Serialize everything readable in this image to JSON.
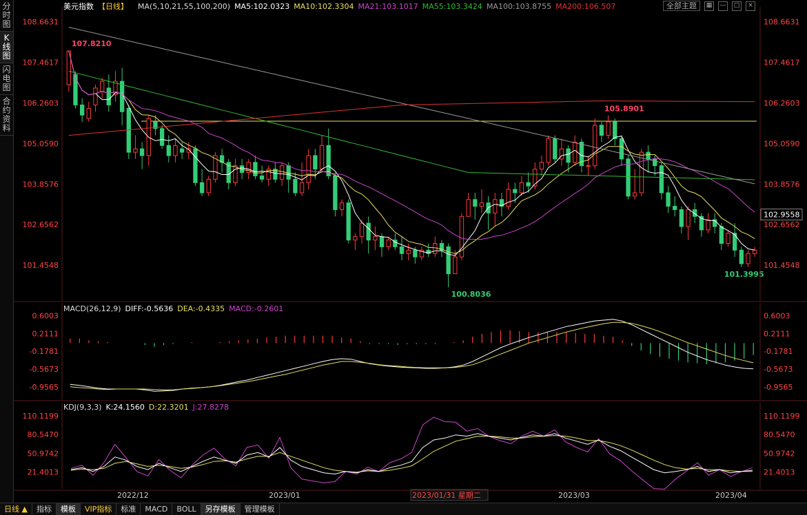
{
  "sidebar": [
    {
      "label": "分时图",
      "active": false
    },
    {
      "label": "K线图",
      "active": true
    },
    {
      "label": "闪电图",
      "active": false
    },
    {
      "label": "合约资料",
      "active": false
    }
  ],
  "header": {
    "title": "美元指数",
    "period": "【日线】",
    "ma_label": "MA(5,10,21,55,100,200)",
    "ma5": "MA5:102.0323",
    "ma10": "MA10:102.3304",
    "ma21": "MA21:103.1017",
    "ma55": "MA55:103.3424",
    "ma100": "MA100:103.8755",
    "ma200": "MA200:106.507",
    "cycle_button": "全部主题",
    "icons": [
      "grid-icon",
      "minus-icon",
      "window-icon",
      "close-icon"
    ]
  },
  "colors": {
    "up": "#ff3b3b",
    "down": "#33cc77",
    "ma5": "#ffffff",
    "ma10": "#e8e060",
    "ma21": "#cc44cc",
    "ma55": "#33bb33",
    "ma100": "#999999",
    "ma200": "#dd3333",
    "axis_text": "#ff4444",
    "grid": "#331111"
  },
  "chart_data": [
    {
      "type": "candlestick",
      "title": "美元指数 日线",
      "y_ticks": [
        "108.6631",
        "107.4617",
        "106.2603",
        "105.0590",
        "103.8576",
        "102.6562",
        "101.4548"
      ],
      "ylim": [
        100.5,
        108.9
      ],
      "current_price": "102.9558",
      "annotations": [
        {
          "label": "107.8210",
          "value": 107.821
        },
        {
          "label": "105.8901",
          "value": 105.8901
        },
        {
          "label": "100.8036",
          "value": 100.8036
        },
        {
          "label": "101.3995",
          "value": 101.3995
        }
      ],
      "horizontal_line": 105.72,
      "x_labels": [
        "2022/12",
        "2023/01",
        "2023/01/31 星期二",
        "2023/03",
        "2023/04"
      ],
      "candles": [
        [
          106.8,
          107.8,
          107.8,
          106.6
        ],
        [
          107.1,
          106.2,
          107.2,
          106.1
        ],
        [
          106.2,
          105.9,
          106.4,
          105.7
        ],
        [
          105.8,
          106.1,
          106.3,
          105.7
        ],
        [
          106.2,
          106.7,
          106.8,
          106.0
        ],
        [
          106.6,
          106.9,
          107.0,
          106.4
        ],
        [
          106.7,
          106.2,
          107.1,
          106.0
        ],
        [
          106.5,
          106.9,
          107.2,
          106.3
        ],
        [
          106.9,
          106.0,
          107.3,
          105.6
        ],
        [
          106.1,
          104.8,
          106.2,
          104.6
        ],
        [
          104.8,
          104.9,
          105.3,
          104.6
        ],
        [
          104.9,
          104.7,
          105.1,
          104.3
        ],
        [
          104.7,
          105.8,
          105.9,
          104.4
        ],
        [
          105.7,
          105.5,
          105.9,
          105.3
        ],
        [
          105.5,
          105.0,
          105.6,
          104.9
        ],
        [
          105.0,
          104.7,
          105.3,
          104.5
        ],
        [
          104.7,
          105.0,
          105.2,
          104.5
        ],
        [
          104.9,
          104.8,
          105.1,
          104.6
        ],
        [
          104.8,
          104.9,
          105.1,
          104.6
        ],
        [
          104.9,
          103.9,
          105.0,
          103.8
        ],
        [
          103.9,
          103.6,
          104.3,
          103.5
        ],
        [
          103.6,
          104.0,
          104.1,
          103.5
        ],
        [
          104.0,
          104.7,
          104.8,
          103.9
        ],
        [
          104.7,
          104.5,
          104.9,
          104.2
        ],
        [
          104.5,
          103.9,
          104.6,
          103.7
        ],
        [
          103.9,
          104.4,
          104.6,
          103.8
        ],
        [
          104.4,
          104.2,
          104.6,
          104.0
        ],
        [
          104.2,
          104.5,
          104.6,
          104.0
        ],
        [
          104.5,
          104.1,
          104.7,
          104.0
        ],
        [
          104.1,
          104.0,
          104.4,
          103.9
        ],
        [
          104.0,
          104.3,
          104.4,
          103.8
        ],
        [
          104.3,
          104.0,
          104.5,
          103.9
        ],
        [
          104.0,
          104.4,
          104.5,
          103.8
        ],
        [
          104.4,
          104.0,
          104.5,
          103.6
        ],
        [
          104.0,
          103.6,
          104.2,
          103.5
        ],
        [
          103.6,
          103.9,
          104.5,
          103.5
        ],
        [
          103.9,
          104.7,
          104.9,
          103.7
        ],
        [
          104.7,
          104.3,
          104.9,
          104.0
        ],
        [
          104.3,
          105.0,
          105.3,
          104.2
        ],
        [
          105.0,
          104.1,
          105.5,
          104.0
        ],
        [
          104.1,
          103.1,
          104.2,
          102.9
        ],
        [
          103.1,
          103.3,
          103.4,
          102.9
        ],
        [
          103.3,
          102.2,
          103.4,
          102.1
        ],
        [
          102.2,
          102.3,
          102.4,
          101.9
        ],
        [
          102.3,
          102.7,
          102.8,
          102.1
        ],
        [
          102.7,
          102.2,
          102.9,
          101.8
        ],
        [
          102.2,
          102.3,
          102.6,
          101.9
        ],
        [
          102.3,
          102.0,
          102.4,
          101.7
        ],
        [
          102.0,
          102.2,
          102.3,
          101.9
        ],
        [
          102.2,
          102.0,
          102.4,
          101.9
        ],
        [
          102.0,
          101.8,
          102.3,
          101.6
        ],
        [
          101.8,
          101.9,
          102.1,
          101.6
        ],
        [
          101.9,
          101.7,
          102.0,
          101.5
        ],
        [
          101.7,
          101.9,
          102.0,
          101.6
        ],
        [
          101.9,
          101.8,
          102.1,
          101.7
        ],
        [
          101.8,
          102.1,
          102.3,
          101.7
        ],
        [
          102.1,
          101.9,
          102.2,
          101.7
        ],
        [
          102.0,
          101.2,
          102.1,
          100.8
        ],
        [
          101.2,
          101.7,
          101.9,
          101.2
        ],
        [
          101.7,
          102.9,
          103.0,
          101.6
        ],
        [
          102.9,
          103.4,
          103.6,
          102.9
        ],
        [
          103.4,
          103.2,
          103.6,
          102.8
        ],
        [
          103.2,
          103.3,
          103.7,
          103.0
        ],
        [
          103.3,
          103.0,
          103.5,
          102.5
        ],
        [
          103.0,
          103.4,
          103.6,
          102.6
        ],
        [
          103.4,
          103.2,
          103.6,
          102.9
        ],
        [
          103.2,
          103.7,
          103.9,
          103.1
        ],
        [
          103.7,
          103.6,
          103.9,
          103.3
        ],
        [
          103.6,
          103.9,
          104.1,
          103.5
        ],
        [
          103.9,
          103.8,
          104.2,
          103.6
        ],
        [
          103.8,
          104.3,
          104.5,
          103.7
        ],
        [
          104.3,
          104.5,
          104.7,
          104.1
        ],
        [
          104.5,
          105.2,
          105.3,
          104.4
        ],
        [
          105.2,
          104.6,
          105.3,
          104.5
        ],
        [
          104.6,
          104.9,
          105.2,
          104.4
        ],
        [
          104.9,
          104.5,
          105.0,
          104.2
        ],
        [
          104.5,
          105.1,
          105.3,
          104.4
        ],
        [
          105.1,
          104.4,
          105.2,
          104.2
        ],
        [
          104.4,
          104.4,
          104.7,
          104.1
        ],
        [
          104.4,
          105.6,
          105.8,
          104.3
        ],
        [
          105.6,
          105.3,
          105.7,
          105.1
        ],
        [
          105.3,
          105.7,
          105.89,
          105.2
        ],
        [
          105.7,
          105.2,
          105.8,
          105.0
        ],
        [
          105.2,
          104.6,
          105.3,
          104.4
        ],
        [
          104.6,
          103.5,
          104.7,
          103.4
        ],
        [
          103.5,
          103.6,
          104.3,
          103.4
        ],
        [
          103.6,
          104.8,
          104.9,
          103.5
        ],
        [
          104.8,
          104.6,
          105.0,
          104.2
        ],
        [
          104.6,
          104.4,
          104.7,
          104.1
        ],
        [
          104.4,
          103.6,
          104.5,
          103.4
        ],
        [
          103.6,
          103.2,
          103.8,
          103.0
        ],
        [
          103.2,
          103.1,
          103.5,
          102.9
        ],
        [
          103.1,
          102.6,
          103.2,
          102.4
        ],
        [
          102.6,
          103.1,
          103.2,
          102.2
        ],
        [
          103.1,
          102.9,
          103.3,
          102.7
        ],
        [
          102.9,
          102.5,
          103.0,
          102.3
        ],
        [
          102.5,
          102.8,
          103.0,
          102.4
        ],
        [
          102.8,
          102.6,
          103.0,
          102.4
        ],
        [
          102.6,
          102.1,
          102.7,
          101.9
        ],
        [
          102.1,
          102.4,
          102.5,
          102.0
        ],
        [
          102.4,
          101.9,
          102.7,
          101.7
        ],
        [
          101.9,
          101.5,
          102.0,
          101.4
        ],
        [
          101.5,
          101.8,
          101.9,
          101.4
        ],
        [
          101.8,
          101.9,
          102.0,
          101.7
        ]
      ]
    },
    {
      "type": "line+bar",
      "title": "MACD(26,12,9)",
      "diff_label": "DIFF:-0.5636",
      "dea_label": "DEA:-0.4335",
      "macd_label": "MACD:-0.2601",
      "y_ticks": [
        "0.6003",
        "0.2111",
        "-0.1781",
        "-0.5673",
        "-0.9565"
      ],
      "ylim": [
        -1.15,
        0.8
      ],
      "diff": [
        -0.9,
        -0.92,
        -0.95,
        -0.98,
        -1.0,
        -1.0,
        -1.0,
        -1.0,
        -1.02,
        -1.05,
        -1.04,
        -1.03,
        -1.0,
        -0.98,
        -0.97,
        -0.95,
        -0.92,
        -0.88,
        -0.84,
        -0.8,
        -0.75,
        -0.7,
        -0.65,
        -0.6,
        -0.55,
        -0.5,
        -0.45,
        -0.4,
        -0.36,
        -0.34,
        -0.35,
        -0.4,
        -0.45,
        -0.48,
        -0.5,
        -0.52,
        -0.53,
        -0.54,
        -0.55,
        -0.55,
        -0.54,
        -0.52,
        -0.48,
        -0.4,
        -0.3,
        -0.2,
        -0.1,
        -0.02,
        0.05,
        0.12,
        0.18,
        0.24,
        0.3,
        0.36,
        0.4,
        0.44,
        0.48,
        0.5,
        0.52,
        0.48,
        0.4,
        0.3,
        0.2,
        0.1,
        0.0,
        -0.1,
        -0.2,
        -0.28,
        -0.36,
        -0.42,
        -0.48,
        -0.52,
        -0.55,
        -0.56
      ],
      "dea": [
        -0.95,
        -0.97,
        -0.98,
        -1.0,
        -1.01,
        -1.0,
        -1.0,
        -1.0,
        -1.0,
        -1.01,
        -1.02,
        -1.02,
        -1.0,
        -0.99,
        -0.97,
        -0.95,
        -0.93,
        -0.9,
        -0.87,
        -0.84,
        -0.8,
        -0.76,
        -0.72,
        -0.68,
        -0.63,
        -0.58,
        -0.53,
        -0.48,
        -0.44,
        -0.4,
        -0.4,
        -0.42,
        -0.44,
        -0.47,
        -0.49,
        -0.5,
        -0.52,
        -0.53,
        -0.54,
        -0.54,
        -0.54,
        -0.53,
        -0.51,
        -0.47,
        -0.4,
        -0.32,
        -0.24,
        -0.16,
        -0.08,
        0.0,
        0.06,
        0.12,
        0.18,
        0.24,
        0.29,
        0.34,
        0.38,
        0.42,
        0.45,
        0.45,
        0.43,
        0.38,
        0.32,
        0.25,
        0.17,
        0.09,
        0.01,
        -0.06,
        -0.13,
        -0.2,
        -0.27,
        -0.33,
        -0.38,
        -0.43
      ]
    },
    {
      "type": "line",
      "title": "KDJ(9,3,3)",
      "k_label": "K:24.1560",
      "d_label": "D:22.3201",
      "j_label": "J:27.8278",
      "y_ticks": [
        "110.1199",
        "80.5470",
        "50.9742",
        "21.4013"
      ],
      "ylim": [
        0,
        120
      ],
      "k": [
        25,
        28,
        22,
        30,
        45,
        40,
        30,
        25,
        35,
        28,
        22,
        30,
        38,
        45,
        40,
        35,
        48,
        52,
        45,
        60,
        40,
        30,
        25,
        20,
        18,
        22,
        20,
        25,
        22,
        28,
        32,
        38,
        60,
        72,
        75,
        80,
        78,
        82,
        78,
        75,
        72,
        76,
        80,
        78,
        82,
        75,
        70,
        65,
        72,
        62,
        55,
        45,
        35,
        25,
        20,
        22,
        25,
        30,
        22,
        25,
        20,
        22,
        24
      ],
      "d": [
        24,
        26,
        25,
        27,
        35,
        38,
        34,
        30,
        32,
        30,
        27,
        29,
        33,
        38,
        39,
        37,
        42,
        46,
        46,
        52,
        46,
        40,
        34,
        28,
        24,
        22,
        21,
        23,
        22,
        24,
        27,
        31,
        42,
        54,
        62,
        70,
        74,
        78,
        78,
        77,
        75,
        75,
        77,
        78,
        79,
        78,
        75,
        71,
        71,
        68,
        63,
        56,
        48,
        40,
        33,
        28,
        26,
        27,
        25,
        25,
        23,
        22,
        22
      ],
      "j": [
        27,
        32,
        16,
        36,
        65,
        44,
        22,
        15,
        41,
        24,
        12,
        32,
        48,
        59,
        42,
        31,
        60,
        64,
        43,
        76,
        28,
        10,
        7,
        4,
        6,
        22,
        18,
        29,
        22,
        36,
        42,
        52,
        96,
        108,
        101,
        100,
        86,
        90,
        78,
        71,
        66,
        78,
        86,
        78,
        88,
        69,
        60,
        53,
        74,
        50,
        39,
        23,
        9,
        -5,
        -6,
        10,
        23,
        36,
        16,
        25,
        14,
        22,
        28
      ]
    }
  ],
  "bottom_tabs": [
    {
      "label": "日线 ▲",
      "active": false,
      "accent": true
    },
    {
      "label": "指标",
      "active": false
    },
    {
      "label": "模板",
      "active": true
    },
    {
      "label": "VIP指标",
      "active": false,
      "accent": true
    },
    {
      "label": "标准",
      "active": false
    },
    {
      "label": "MACD",
      "active": false
    },
    {
      "label": "BOLL",
      "active": false
    },
    {
      "label": "另存模板",
      "active": true
    },
    {
      "label": "管理模板",
      "active": false
    }
  ]
}
